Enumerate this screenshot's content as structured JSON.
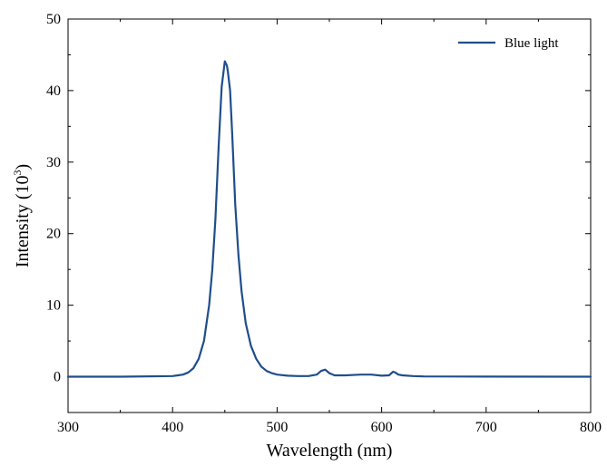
{
  "chart_data": {
    "type": "line",
    "title": "",
    "xlabel": "Wavelength (nm)",
    "ylabel_base": "Intensity (10",
    "ylabel_exp": "3",
    "ylabel_tail": ")",
    "xlim": [
      300,
      800
    ],
    "ylim": [
      -5,
      50
    ],
    "xticks": [
      300,
      400,
      500,
      600,
      700,
      800
    ],
    "xtick_labels": [
      "300",
      "400",
      "500",
      "600",
      "700",
      "800"
    ],
    "yticks": [
      0,
      10,
      20,
      30,
      40,
      50
    ],
    "ytick_labels": [
      "0",
      "10",
      "20",
      "30",
      "40",
      "50"
    ],
    "grid": false,
    "legend_position": "top-right",
    "series": [
      {
        "name": "Blue light",
        "color": "#1f4e8c",
        "x": [
          300,
          350,
          400,
          405,
          410,
          415,
          420,
          425,
          430,
          435,
          438,
          441,
          444,
          447,
          450,
          452,
          453,
          455,
          457,
          460,
          463,
          466,
          470,
          475,
          480,
          485,
          490,
          495,
          500,
          510,
          520,
          530,
          538,
          542,
          546,
          550,
          555,
          565,
          580,
          590,
          600,
          607,
          611,
          613,
          616,
          620,
          630,
          640,
          700,
          800
        ],
        "y": [
          0,
          0,
          0.1,
          0.2,
          0.3,
          0.6,
          1.2,
          2.5,
          5.0,
          10.0,
          15.0,
          22.0,
          32.0,
          40.5,
          44.1,
          43.5,
          42.5,
          40.0,
          34.0,
          24.0,
          17.0,
          12.0,
          7.5,
          4.3,
          2.5,
          1.4,
          0.8,
          0.5,
          0.3,
          0.15,
          0.1,
          0.1,
          0.3,
          0.8,
          1.0,
          0.5,
          0.2,
          0.2,
          0.3,
          0.3,
          0.15,
          0.2,
          0.7,
          0.6,
          0.3,
          0.2,
          0.1,
          0.05,
          0.02,
          0
        ]
      }
    ]
  }
}
